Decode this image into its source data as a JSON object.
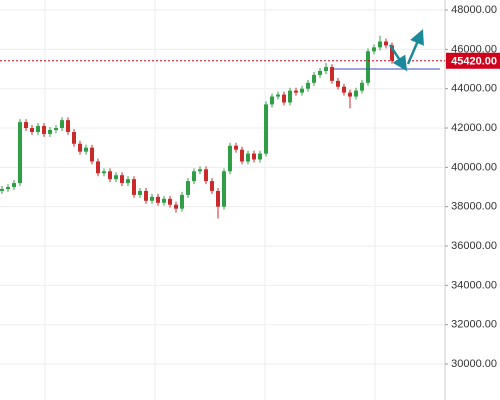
{
  "chart_data": {
    "type": "candlestick",
    "ylim": [
      28170,
      48510
    ],
    "yticks": [
      {
        "value": 30000,
        "label": "30000.00"
      },
      {
        "value": 32000,
        "label": "32000.00"
      },
      {
        "value": 34000,
        "label": "34000.00"
      },
      {
        "value": 36000,
        "label": "36000.00"
      },
      {
        "value": 38000,
        "label": "38000.00"
      },
      {
        "value": 40000,
        "label": "40000.00"
      },
      {
        "value": 42000,
        "label": "42000.00"
      },
      {
        "value": 44000,
        "label": "44000.00"
      },
      {
        "value": 46000,
        "label": "46000.00"
      },
      {
        "value": 48000,
        "label": "48000.00"
      }
    ],
    "grid": true,
    "up_color": "#2f9e44",
    "down_color": "#c92a2a",
    "last_price": {
      "value": 45420,
      "label": "45420.00"
    },
    "last_price_color": "#d0021b",
    "hline": 45000,
    "hline_color": "#3b4cc0",
    "open": [
      38800,
      38900,
      39000,
      39200,
      42300,
      42000,
      41800,
      42100,
      41700,
      41900,
      42000,
      42400,
      41800,
      41200,
      40800,
      41000,
      40300,
      39700,
      39800,
      39400,
      39600,
      39200,
      39400,
      38600,
      38800,
      38300,
      38500,
      38200,
      38400,
      38100,
      37900,
      38600,
      39300,
      39800,
      39900,
      39300,
      38800,
      38000,
      39800,
      41100,
      40900,
      40300,
      40700,
      40400,
      40700,
      43200,
      43600,
      43700,
      43300,
      43900,
      43800,
      44000,
      44300,
      44700,
      44900,
      45100,
      44400,
      44100,
      43800,
      43600,
      43900,
      44300,
      45900,
      46100,
      46400,
      46200
    ],
    "high": [
      39050,
      39150,
      39350,
      42450,
      42450,
      42150,
      42250,
      42250,
      42050,
      42150,
      42550,
      42550,
      41950,
      41350,
      41150,
      41150,
      40450,
      39950,
      39950,
      39750,
      39750,
      39550,
      39550,
      38950,
      38950,
      38650,
      38650,
      38550,
      38550,
      38250,
      38750,
      39450,
      39950,
      40050,
      40050,
      39450,
      38950,
      39950,
      41250,
      41250,
      41050,
      40850,
      40850,
      40850,
      43350,
      43750,
      43850,
      43850,
      44050,
      44050,
      44150,
      44450,
      44850,
      45050,
      45300,
      45250,
      44550,
      44250,
      43950,
      44050,
      44450,
      46050,
      46250,
      46700,
      46550,
      46350
    ],
    "low": [
      38650,
      38750,
      38850,
      39050,
      41850,
      41650,
      41650,
      41550,
      41550,
      41750,
      41850,
      41650,
      41050,
      40650,
      40650,
      40150,
      39550,
      39550,
      39250,
      39250,
      39050,
      39050,
      38450,
      38450,
      38150,
      38150,
      38050,
      38050,
      37950,
      37700,
      37750,
      38450,
      39150,
      39650,
      39150,
      38650,
      37400,
      37850,
      39650,
      40750,
      40150,
      40150,
      40250,
      40250,
      40550,
      43050,
      43450,
      43150,
      43150,
      43650,
      43650,
      43850,
      44150,
      44550,
      44750,
      44250,
      43950,
      43650,
      43000,
      43450,
      43750,
      44150,
      45750,
      45950,
      46050,
      45270
    ],
    "close": [
      38900,
      39000,
      39200,
      42300,
      42000,
      41800,
      42100,
      41700,
      41900,
      42000,
      42400,
      41800,
      41200,
      40800,
      41000,
      40300,
      39700,
      39800,
      39400,
      39600,
      39200,
      39400,
      38600,
      38800,
      38300,
      38500,
      38200,
      38400,
      38100,
      37900,
      38600,
      39300,
      39800,
      39900,
      39300,
      38800,
      38000,
      39800,
      41100,
      40900,
      40300,
      40700,
      40400,
      40700,
      43200,
      43600,
      43700,
      43300,
      43900,
      43800,
      44000,
      44300,
      44700,
      44900,
      45100,
      44400,
      44100,
      43800,
      43600,
      43900,
      44300,
      45900,
      46100,
      46400,
      46200,
      45420
    ]
  }
}
